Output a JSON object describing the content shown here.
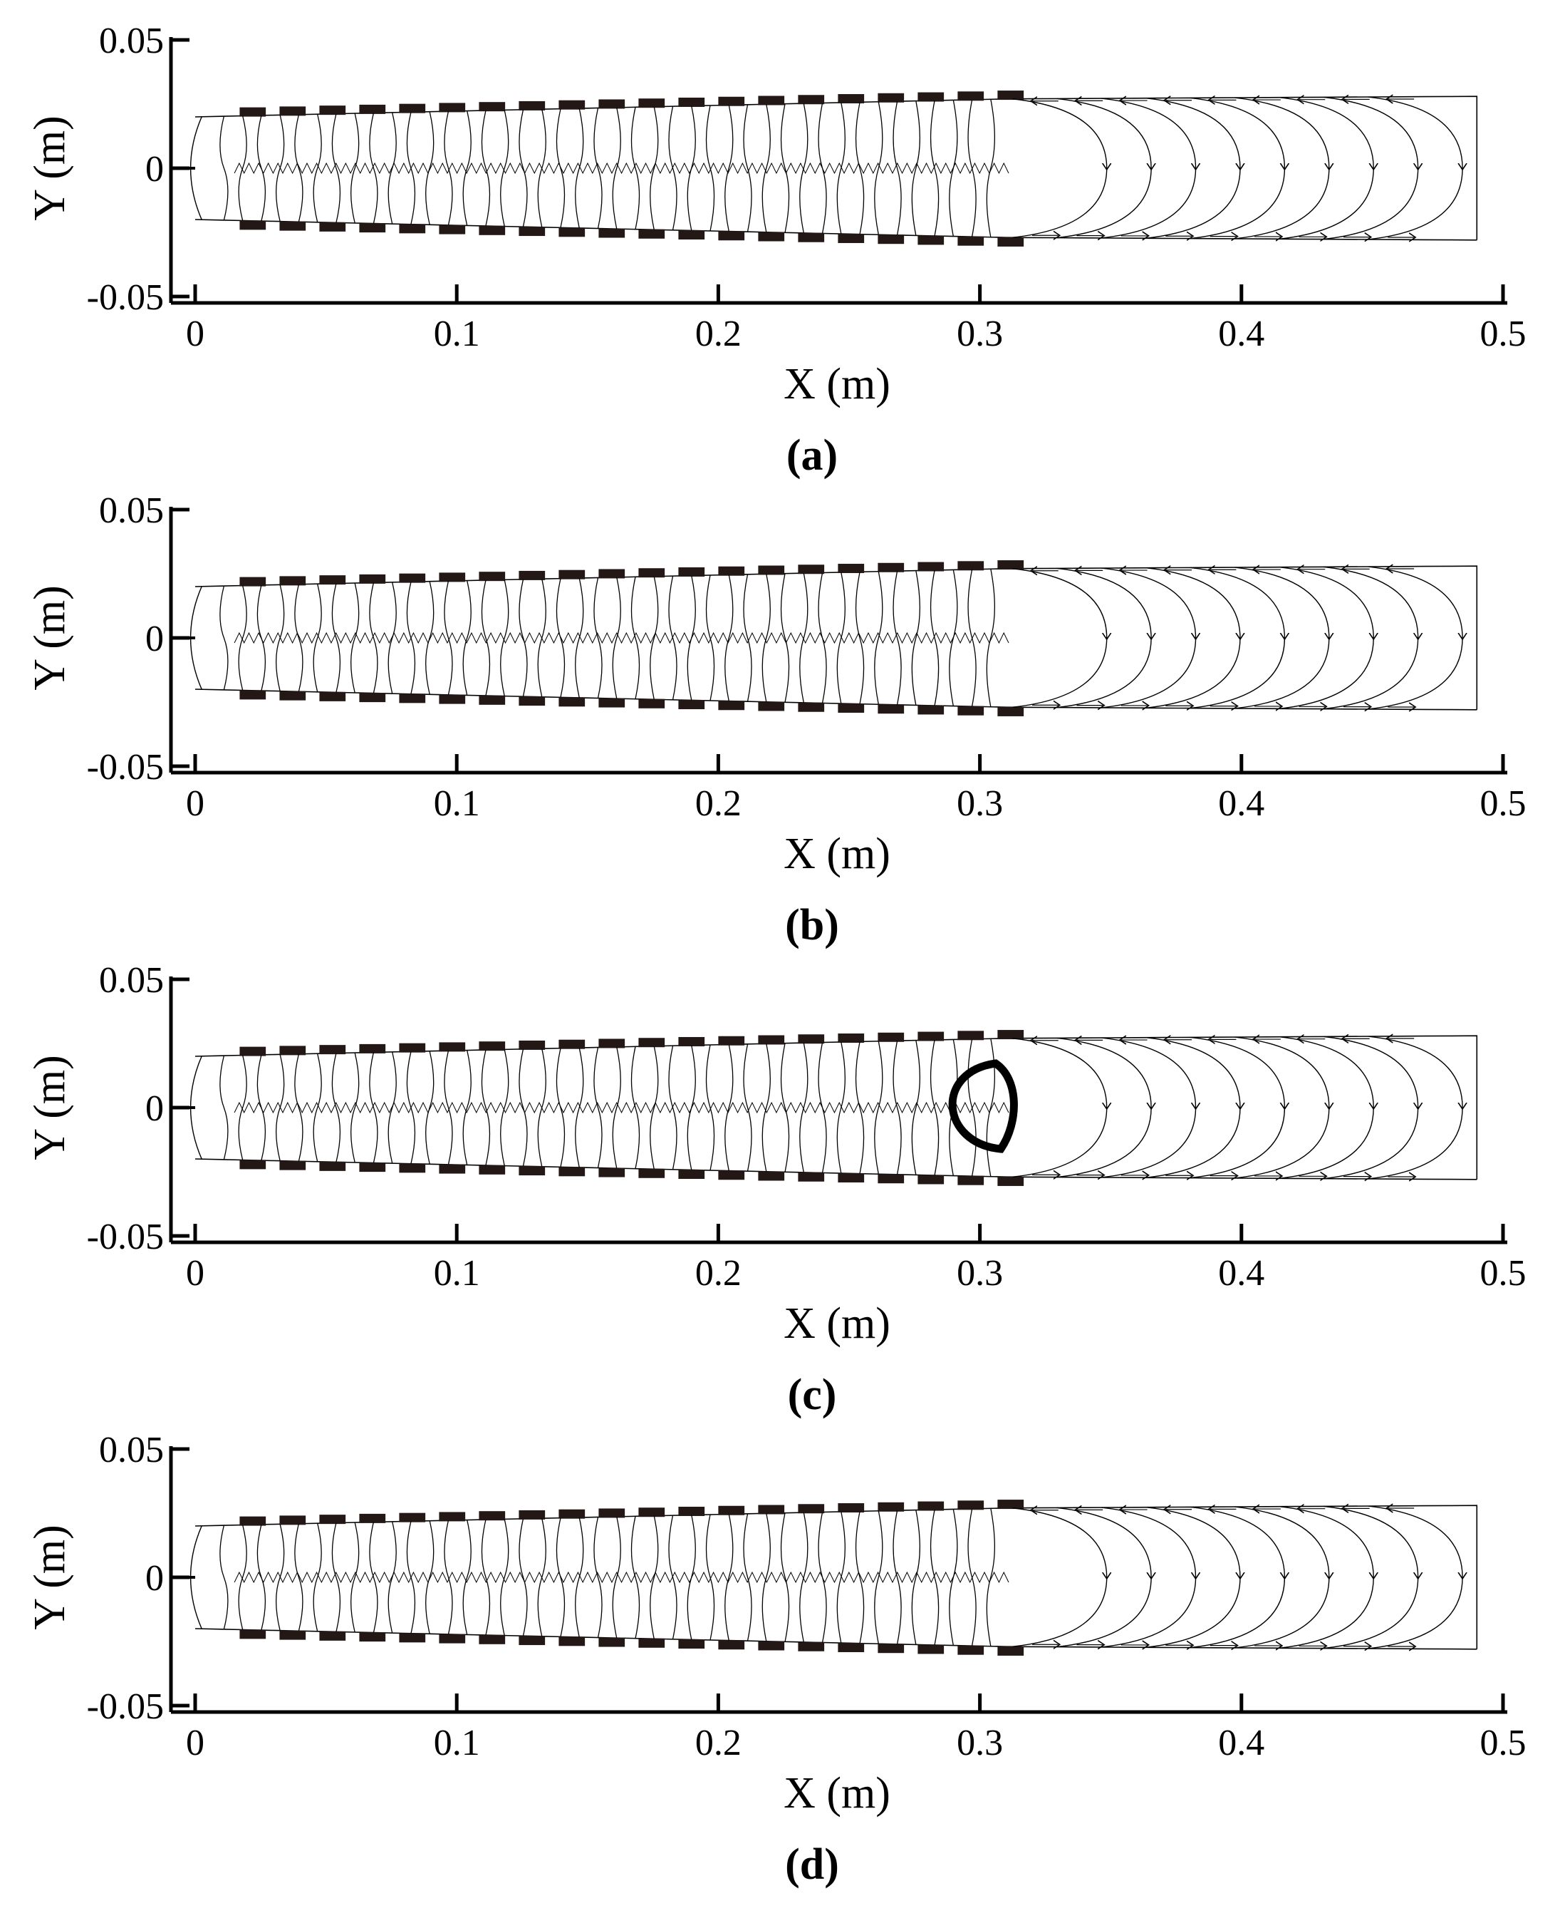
{
  "chart_data": [
    {
      "type": "flow",
      "xlabel": "X (m)",
      "ylabel": "Y (m)",
      "caption": "(a)",
      "xlim": [
        0,
        0.5
      ],
      "ylim": [
        -0.05,
        0.05
      ],
      "xticks": [
        0,
        0.1,
        0.2,
        0.3,
        0.4,
        0.5
      ],
      "yticks": [
        -0.05,
        0,
        0.05
      ]
    },
    {
      "type": "flow",
      "xlabel": "X (m)",
      "ylabel": "Y (m)",
      "caption": "(b)",
      "xlim": [
        0,
        0.5
      ],
      "ylim": [
        -0.05,
        0.05
      ],
      "xticks": [
        0,
        0.1,
        0.2,
        0.3,
        0.4,
        0.5
      ],
      "yticks": [
        -0.05,
        0,
        0.05
      ]
    },
    {
      "type": "flow",
      "xlabel": "X (m)",
      "ylabel": "Y (m)",
      "caption": "(c)",
      "xlim": [
        0,
        0.5
      ],
      "ylim": [
        -0.05,
        0.05
      ],
      "xticks": [
        0,
        0.1,
        0.2,
        0.3,
        0.4,
        0.5
      ],
      "yticks": [
        -0.05,
        0,
        0.05
      ]
    },
    {
      "type": "flow",
      "xlabel": "X (m)",
      "ylabel": "Y (m)",
      "caption": "(d)",
      "xlim": [
        0,
        0.5
      ],
      "ylim": [
        -0.05,
        0.05
      ],
      "xticks": [
        0,
        0.1,
        0.2,
        0.3,
        0.4,
        0.5
      ],
      "yticks": [
        -0.05,
        0,
        0.05
      ]
    }
  ]
}
